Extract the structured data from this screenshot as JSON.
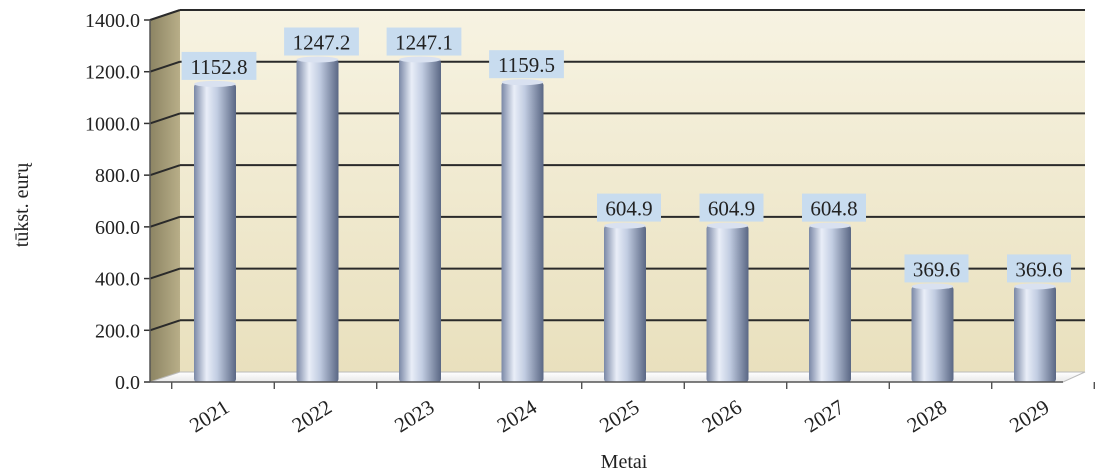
{
  "chart_data": {
    "type": "bar",
    "categories": [
      "2021",
      "2022",
      "2023",
      "2024",
      "2025",
      "2026",
      "2027",
      "2028",
      "2029"
    ],
    "values": [
      1152.8,
      1247.2,
      1247.1,
      1159.5,
      604.9,
      604.9,
      604.8,
      369.6,
      369.6
    ],
    "data_labels": [
      "1152.8",
      "1247.2",
      "1247.1",
      "1159.5",
      "604.9",
      "604.9",
      "604.8",
      "369.6",
      "369.6"
    ],
    "title": "",
    "xlabel": "Metai",
    "ylabel": "tūkst. eurų",
    "ylim": [
      0,
      1400
    ],
    "yticks": [
      "0.0",
      "200.0",
      "400.0",
      "600.0",
      "800.0",
      "1000.0",
      "1200.0",
      "1400.0"
    ],
    "grid": true,
    "legend": "none",
    "colors": {
      "plot_background": "#ebe3c4",
      "back_wall_top": "#f6f1de",
      "side_wall": "#a79e7a",
      "bar_light": "#eef2fa",
      "bar_mid": "#b7c4dc",
      "bar_dark": "#5c6a86",
      "label_box": "#c9dcef",
      "gridline": "#1a1a1a"
    }
  }
}
